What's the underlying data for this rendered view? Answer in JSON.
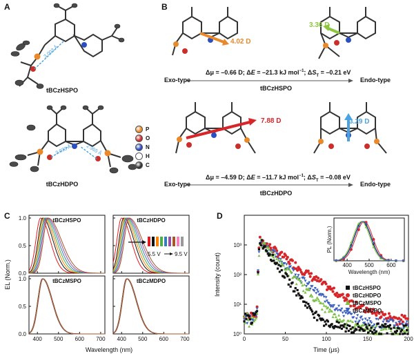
{
  "panels": {
    "A": {
      "label": "A",
      "molecules": [
        {
          "name": "tBCzHSPO",
          "distance": "3.003 Å"
        },
        {
          "name": "tBCzHDPO",
          "distances": [
            "3.033 Å",
            "2.965 Å"
          ]
        }
      ],
      "atom_legend": [
        {
          "symbol": "P",
          "color": "#e8892b"
        },
        {
          "symbol": "O",
          "color": "#c9302c"
        },
        {
          "symbol": "N",
          "color": "#2c4fbf"
        },
        {
          "symbol": "H",
          "color": "#ffffff"
        },
        {
          "symbol": "C",
          "color": "#333333"
        }
      ]
    },
    "B": {
      "label": "B",
      "rows": [
        {
          "molecule": "tBCzHSPO",
          "exo_dipole": "4.02 D",
          "endo_dipole": "3.36 D",
          "dmu": "–0.66",
          "dE": "–21.3",
          "dS": "–0.21",
          "exo_color": "#e8892b",
          "endo_color": "#8dc63f"
        },
        {
          "molecule": "tBCzHDPO",
          "exo_dipole": "7.88 D",
          "endo_dipole": "3.29 D",
          "dmu": "–4.59",
          "dE": "–11.7",
          "dS": "–0.08",
          "exo_color": "#d6262a",
          "endo_color": "#4aa3df"
        }
      ],
      "exo_label": "Exo-type",
      "endo_label": "Endo-type",
      "text": {
        "dmu_pre": "Δμ = ",
        "dmu_post": " D; Δ",
        "E": "E",
        "dE_mid": " = ",
        "dE_post": " kJ mol",
        "dE_exp": "−1",
        "dS_pre": "; Δ",
        "S": "S",
        "S_sub": "T",
        "dS_mid": " = ",
        "dS_post": " eV"
      }
    },
    "C": {
      "label": "C",
      "ylabel": "EL (Norm.)",
      "xlabel": "Wavelength (nm)",
      "voltage_start": "5.5 V",
      "voltage_end": "9.5 V"
    },
    "D": {
      "label": "D",
      "ylabel": "Intensity (count)",
      "xlabel": "Time (μs)",
      "inset": {
        "ylabel": "PL (Norm.)",
        "xlabel": "Wavelength (nm)"
      }
    }
  },
  "chart_data": [
    {
      "type": "line",
      "panel": "C",
      "subplots": [
        {
          "title": "tBCzHSPO",
          "x_peaks": [
            415,
            425,
            430,
            435,
            440,
            445,
            450
          ],
          "traces": 7
        },
        {
          "title": "tBCzHDPO",
          "x_peaks": [
            400,
            410,
            415,
            420,
            425,
            430,
            435
          ],
          "traces": 7
        },
        {
          "title": "tBCzMSPO",
          "x_peaks": [
            425
          ],
          "traces": 7
        },
        {
          "title": "tBCzMDPO",
          "x_peaks": [
            425
          ],
          "traces": 7
        }
      ],
      "xlim": [
        360,
        720
      ],
      "xticks": [
        400,
        500,
        600,
        700
      ],
      "ylim": [
        0,
        1.05
      ],
      "yticks": [
        "0.0",
        "0.5",
        "1.0"
      ],
      "colors": [
        "#e41a1c",
        "#111111",
        "#ff7f00",
        "#4daf4a",
        "#377eb8",
        "#984ea3",
        "#a65628",
        "#f781bf",
        "#999999"
      ],
      "xlabel": "Wavelength (nm)",
      "ylabel": "EL (Norm.)"
    },
    {
      "type": "scatter",
      "panel": "D",
      "xlabel": "Time (μs)",
      "ylabel": "Intensity (count)",
      "xlim": [
        0,
        200
      ],
      "xticks": [
        0,
        50,
        100,
        150,
        200
      ],
      "ylim_log": [
        1,
        10000
      ],
      "yticks": [
        "10⁰",
        "10¹",
        "10²",
        "10³"
      ],
      "series": [
        {
          "name": "tBCzHSPO",
          "color": "#111111",
          "marker": "square",
          "peak": 1500,
          "tau": 11,
          "floor": 1.5
        },
        {
          "name": "tBCzHDPO",
          "color": "#d6262a",
          "marker": "circle",
          "peak": 1500,
          "tau": 22,
          "floor": 2.5
        },
        {
          "name": "tBCzMSPO",
          "color": "#7ac143",
          "marker": "triangle-up",
          "peak": 1300,
          "tau": 15,
          "floor": 1.2
        },
        {
          "name": "tBCzMDPO",
          "color": "#3a5fbf",
          "marker": "triangle-down",
          "peak": 1400,
          "tau": 17,
          "floor": 2.0
        }
      ],
      "inset": {
        "xlabel": "Wavelength (nm)",
        "ylabel": "PL (Norm.)",
        "xlim": [
          340,
          660
        ],
        "xticks": [
          400,
          500,
          600
        ],
        "peaks": [
          470,
          478,
          465,
          472
        ]
      }
    }
  ]
}
